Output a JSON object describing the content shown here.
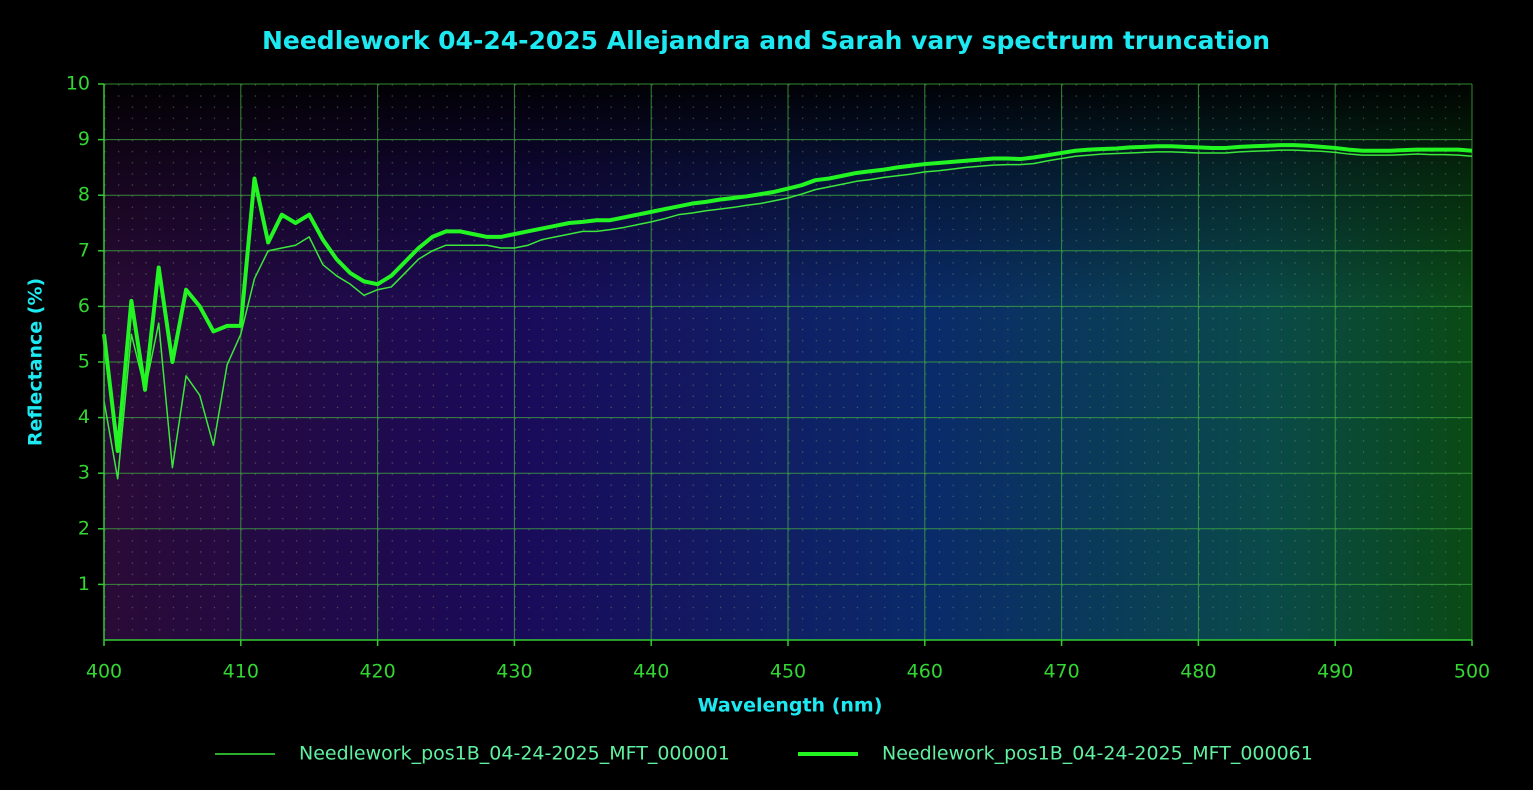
{
  "chart_data": {
    "type": "line",
    "title": "Needlework 04-24-2025 Allejandra and Sarah vary spectrum truncation",
    "x_label": "Wavelength (nm)",
    "y_label": "Reflectance (%)",
    "xlim": [
      400,
      500
    ],
    "xticks": [
      400,
      410,
      420,
      430,
      440,
      450,
      460,
      470,
      480,
      490,
      500
    ],
    "ylim": [
      0,
      10
    ],
    "yticks": [
      1,
      2,
      3,
      4,
      5,
      6,
      7,
      8,
      9,
      10
    ],
    "grid": true,
    "legend": "bottom",
    "x": [
      400,
      401,
      402,
      403,
      404,
      405,
      406,
      407,
      408,
      409,
      410,
      411,
      412,
      413,
      414,
      415,
      416,
      417,
      418,
      419,
      420,
      421,
      422,
      423,
      424,
      425,
      426,
      427,
      428,
      429,
      430,
      431,
      432,
      433,
      434,
      435,
      436,
      437,
      438,
      439,
      440,
      441,
      442,
      443,
      444,
      445,
      446,
      447,
      448,
      449,
      450,
      451,
      452,
      453,
      454,
      455,
      456,
      457,
      458,
      459,
      460,
      461,
      462,
      463,
      464,
      465,
      466,
      467,
      468,
      469,
      470,
      471,
      472,
      473,
      474,
      475,
      476,
      477,
      478,
      479,
      480,
      481,
      482,
      483,
      484,
      485,
      486,
      487,
      488,
      489,
      490,
      491,
      492,
      493,
      494,
      495,
      496,
      497,
      498,
      499,
      500
    ],
    "series": [
      {
        "name": "Needlework_pos1B_04-24-2025_MFT_000001",
        "color": "#3ae83a",
        "width": 1.5,
        "values": [
          4.3,
          2.9,
          5.5,
          4.5,
          5.7,
          3.1,
          4.75,
          4.4,
          3.5,
          4.95,
          5.5,
          6.5,
          7.0,
          7.05,
          7.1,
          7.25,
          6.75,
          6.55,
          6.4,
          6.2,
          6.3,
          6.35,
          6.6,
          6.85,
          7.0,
          7.1,
          7.1,
          7.1,
          7.1,
          7.05,
          7.05,
          7.1,
          7.2,
          7.25,
          7.3,
          7.35,
          7.35,
          7.38,
          7.42,
          7.47,
          7.52,
          7.58,
          7.65,
          7.68,
          7.72,
          7.75,
          7.78,
          7.82,
          7.85,
          7.9,
          7.95,
          8.02,
          8.1,
          8.15,
          8.2,
          8.25,
          8.28,
          8.32,
          8.35,
          8.38,
          8.42,
          8.44,
          8.47,
          8.5,
          8.52,
          8.54,
          8.55,
          8.55,
          8.57,
          8.62,
          8.66,
          8.7,
          8.72,
          8.74,
          8.75,
          8.76,
          8.77,
          8.78,
          8.78,
          8.77,
          8.76,
          8.76,
          8.76,
          8.78,
          8.79,
          8.8,
          8.81,
          8.81,
          8.8,
          8.79,
          8.77,
          8.74,
          8.72,
          8.72,
          8.72,
          8.73,
          8.74,
          8.73,
          8.73,
          8.72,
          8.7
        ]
      },
      {
        "name": "Needlework_pos1B_04-24-2025_MFT_000061",
        "color": "#22f522",
        "width": 4,
        "values": [
          5.5,
          3.4,
          6.1,
          4.5,
          6.7,
          5.0,
          6.3,
          6.0,
          5.55,
          5.65,
          5.65,
          8.3,
          7.15,
          7.65,
          7.5,
          7.65,
          7.2,
          6.85,
          6.6,
          6.45,
          6.4,
          6.55,
          6.8,
          7.05,
          7.25,
          7.35,
          7.35,
          7.3,
          7.25,
          7.25,
          7.3,
          7.35,
          7.4,
          7.45,
          7.5,
          7.52,
          7.55,
          7.55,
          7.6,
          7.65,
          7.7,
          7.75,
          7.8,
          7.85,
          7.88,
          7.92,
          7.95,
          7.98,
          8.02,
          8.06,
          8.12,
          8.18,
          8.27,
          8.3,
          8.35,
          8.4,
          8.43,
          8.46,
          8.5,
          8.53,
          8.56,
          8.58,
          8.6,
          8.62,
          8.64,
          8.66,
          8.66,
          8.65,
          8.68,
          8.72,
          8.76,
          8.8,
          8.82,
          8.83,
          8.84,
          8.86,
          8.87,
          8.88,
          8.88,
          8.87,
          8.86,
          8.85,
          8.85,
          8.87,
          8.88,
          8.89,
          8.9,
          8.9,
          8.89,
          8.87,
          8.85,
          8.82,
          8.8,
          8.8,
          8.8,
          8.81,
          8.82,
          8.82,
          8.82,
          8.82,
          8.8
        ]
      }
    ]
  }
}
